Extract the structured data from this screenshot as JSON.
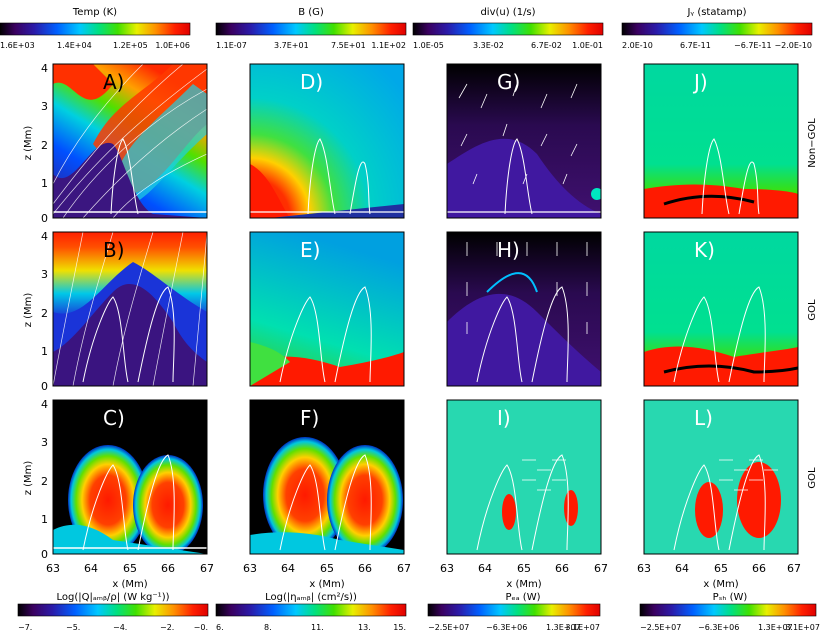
{
  "figure": {
    "columns": [
      {
        "id": "temp",
        "colorbar_title": "Temp (K)",
        "colorbar_ticks": [
          "1.6E+03",
          "1.4E+04",
          "1.2E+05",
          "1.0E+06"
        ],
        "colormap": "rainbow"
      },
      {
        "id": "bfield",
        "colorbar_title": "B (G)",
        "colorbar_ticks": [
          "1.1E-07",
          "3.7E+01",
          "7.5E+01",
          "1.1E+02"
        ],
        "colormap": "rainbow"
      },
      {
        "id": "divu",
        "colorbar_title": "div(u) (1/s)",
        "colorbar_ticks": [
          "1.0E-05",
          "3.3E-02",
          "6.7E-02",
          "1.0E-01"
        ],
        "colormap": "rainbow"
      },
      {
        "id": "jy",
        "colorbar_title": "Jᵧ (statamp)",
        "colorbar_ticks": [
          "2.0E-10",
          "6.7E-11",
          "−6.7E-11",
          "−2.0E-10"
        ],
        "colormap": "rainbow"
      }
    ],
    "bottom_colorbars": [
      {
        "title": "Log(|Q|ₐₘᵦ/ρ| (W kg⁻¹))",
        "ticks": [
          "−7.",
          "−5.",
          "−4.",
          "−2.",
          "−0."
        ]
      },
      {
        "title": "Log(|ηₐₘᵦ| (cm²/s))",
        "ticks": [
          "6.",
          "8.",
          "11.",
          "13.",
          "15."
        ]
      },
      {
        "title": "Pₑₐ (W)",
        "ticks": [
          "−2.5E+07",
          "−6.3E+06",
          "1.3E+07",
          "3.1E+07"
        ]
      },
      {
        "title": "Pₛₕ (W)",
        "ticks": [
          "−2.5E+07",
          "−6.3E+06",
          "1.3E+07",
          "3.1E+07"
        ]
      }
    ],
    "panel_letters": [
      [
        "A)",
        "D)",
        "G)",
        "J)"
      ],
      [
        "B)",
        "E)",
        "H)",
        "K)"
      ],
      [
        "C)",
        "F)",
        "I)",
        "L)"
      ]
    ],
    "row_labels": [
      "Non−GOL",
      "GOL",
      "GOL"
    ],
    "ylabel": "z (Mm)",
    "xlabel": "x (Mm)",
    "yticks": [
      "0",
      "1",
      "2",
      "3",
      "4"
    ],
    "xticks": [
      "63",
      "64",
      "65",
      "66",
      "67"
    ]
  }
}
